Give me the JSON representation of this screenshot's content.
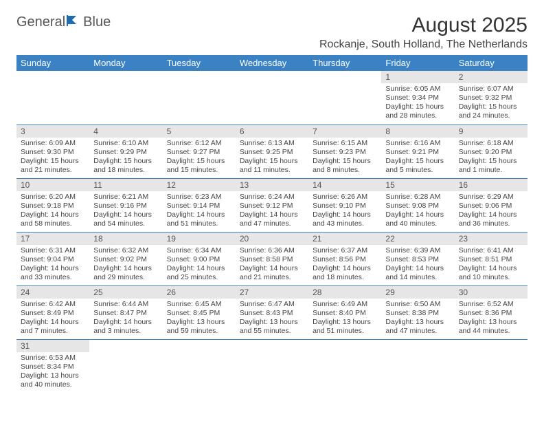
{
  "logo": {
    "text1": "General",
    "text2": "Blue"
  },
  "title": "August 2025",
  "location": "Rockanje, South Holland, The Netherlands",
  "days_of_week": [
    "Sunday",
    "Monday",
    "Tuesday",
    "Wednesday",
    "Thursday",
    "Friday",
    "Saturday"
  ],
  "colors": {
    "header_bg": "#3b82c4",
    "header_fg": "#ffffff",
    "daynum_bg": "#e6e6e6",
    "border": "#3b82c4",
    "text": "#444444"
  },
  "weeks": [
    [
      null,
      null,
      null,
      null,
      null,
      {
        "n": "1",
        "sunrise": "Sunrise: 6:05 AM",
        "sunset": "Sunset: 9:34 PM",
        "daylight": "Daylight: 15 hours and 28 minutes."
      },
      {
        "n": "2",
        "sunrise": "Sunrise: 6:07 AM",
        "sunset": "Sunset: 9:32 PM",
        "daylight": "Daylight: 15 hours and 24 minutes."
      }
    ],
    [
      {
        "n": "3",
        "sunrise": "Sunrise: 6:09 AM",
        "sunset": "Sunset: 9:30 PM",
        "daylight": "Daylight: 15 hours and 21 minutes."
      },
      {
        "n": "4",
        "sunrise": "Sunrise: 6:10 AM",
        "sunset": "Sunset: 9:29 PM",
        "daylight": "Daylight: 15 hours and 18 minutes."
      },
      {
        "n": "5",
        "sunrise": "Sunrise: 6:12 AM",
        "sunset": "Sunset: 9:27 PM",
        "daylight": "Daylight: 15 hours and 15 minutes."
      },
      {
        "n": "6",
        "sunrise": "Sunrise: 6:13 AM",
        "sunset": "Sunset: 9:25 PM",
        "daylight": "Daylight: 15 hours and 11 minutes."
      },
      {
        "n": "7",
        "sunrise": "Sunrise: 6:15 AM",
        "sunset": "Sunset: 9:23 PM",
        "daylight": "Daylight: 15 hours and 8 minutes."
      },
      {
        "n": "8",
        "sunrise": "Sunrise: 6:16 AM",
        "sunset": "Sunset: 9:21 PM",
        "daylight": "Daylight: 15 hours and 5 minutes."
      },
      {
        "n": "9",
        "sunrise": "Sunrise: 6:18 AM",
        "sunset": "Sunset: 9:20 PM",
        "daylight": "Daylight: 15 hours and 1 minute."
      }
    ],
    [
      {
        "n": "10",
        "sunrise": "Sunrise: 6:20 AM",
        "sunset": "Sunset: 9:18 PM",
        "daylight": "Daylight: 14 hours and 58 minutes."
      },
      {
        "n": "11",
        "sunrise": "Sunrise: 6:21 AM",
        "sunset": "Sunset: 9:16 PM",
        "daylight": "Daylight: 14 hours and 54 minutes."
      },
      {
        "n": "12",
        "sunrise": "Sunrise: 6:23 AM",
        "sunset": "Sunset: 9:14 PM",
        "daylight": "Daylight: 14 hours and 51 minutes."
      },
      {
        "n": "13",
        "sunrise": "Sunrise: 6:24 AM",
        "sunset": "Sunset: 9:12 PM",
        "daylight": "Daylight: 14 hours and 47 minutes."
      },
      {
        "n": "14",
        "sunrise": "Sunrise: 6:26 AM",
        "sunset": "Sunset: 9:10 PM",
        "daylight": "Daylight: 14 hours and 43 minutes."
      },
      {
        "n": "15",
        "sunrise": "Sunrise: 6:28 AM",
        "sunset": "Sunset: 9:08 PM",
        "daylight": "Daylight: 14 hours and 40 minutes."
      },
      {
        "n": "16",
        "sunrise": "Sunrise: 6:29 AM",
        "sunset": "Sunset: 9:06 PM",
        "daylight": "Daylight: 14 hours and 36 minutes."
      }
    ],
    [
      {
        "n": "17",
        "sunrise": "Sunrise: 6:31 AM",
        "sunset": "Sunset: 9:04 PM",
        "daylight": "Daylight: 14 hours and 33 minutes."
      },
      {
        "n": "18",
        "sunrise": "Sunrise: 6:32 AM",
        "sunset": "Sunset: 9:02 PM",
        "daylight": "Daylight: 14 hours and 29 minutes."
      },
      {
        "n": "19",
        "sunrise": "Sunrise: 6:34 AM",
        "sunset": "Sunset: 9:00 PM",
        "daylight": "Daylight: 14 hours and 25 minutes."
      },
      {
        "n": "20",
        "sunrise": "Sunrise: 6:36 AM",
        "sunset": "Sunset: 8:58 PM",
        "daylight": "Daylight: 14 hours and 21 minutes."
      },
      {
        "n": "21",
        "sunrise": "Sunrise: 6:37 AM",
        "sunset": "Sunset: 8:56 PM",
        "daylight": "Daylight: 14 hours and 18 minutes."
      },
      {
        "n": "22",
        "sunrise": "Sunrise: 6:39 AM",
        "sunset": "Sunset: 8:53 PM",
        "daylight": "Daylight: 14 hours and 14 minutes."
      },
      {
        "n": "23",
        "sunrise": "Sunrise: 6:41 AM",
        "sunset": "Sunset: 8:51 PM",
        "daylight": "Daylight: 14 hours and 10 minutes."
      }
    ],
    [
      {
        "n": "24",
        "sunrise": "Sunrise: 6:42 AM",
        "sunset": "Sunset: 8:49 PM",
        "daylight": "Daylight: 14 hours and 7 minutes."
      },
      {
        "n": "25",
        "sunrise": "Sunrise: 6:44 AM",
        "sunset": "Sunset: 8:47 PM",
        "daylight": "Daylight: 14 hours and 3 minutes."
      },
      {
        "n": "26",
        "sunrise": "Sunrise: 6:45 AM",
        "sunset": "Sunset: 8:45 PM",
        "daylight": "Daylight: 13 hours and 59 minutes."
      },
      {
        "n": "27",
        "sunrise": "Sunrise: 6:47 AM",
        "sunset": "Sunset: 8:43 PM",
        "daylight": "Daylight: 13 hours and 55 minutes."
      },
      {
        "n": "28",
        "sunrise": "Sunrise: 6:49 AM",
        "sunset": "Sunset: 8:40 PM",
        "daylight": "Daylight: 13 hours and 51 minutes."
      },
      {
        "n": "29",
        "sunrise": "Sunrise: 6:50 AM",
        "sunset": "Sunset: 8:38 PM",
        "daylight": "Daylight: 13 hours and 47 minutes."
      },
      {
        "n": "30",
        "sunrise": "Sunrise: 6:52 AM",
        "sunset": "Sunset: 8:36 PM",
        "daylight": "Daylight: 13 hours and 44 minutes."
      }
    ],
    [
      {
        "n": "31",
        "sunrise": "Sunrise: 6:53 AM",
        "sunset": "Sunset: 8:34 PM",
        "daylight": "Daylight: 13 hours and 40 minutes."
      },
      null,
      null,
      null,
      null,
      null,
      null
    ]
  ]
}
